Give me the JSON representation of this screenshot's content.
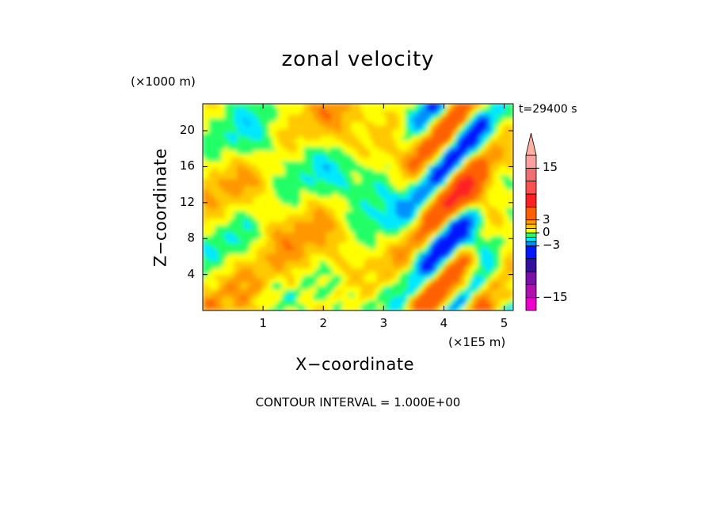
{
  "chart_data": {
    "type": "heatmap",
    "title": "zonal velocity",
    "xlabel": "X−coordinate",
    "ylabel": "Z−coordinate",
    "x_unit_label": "(×1E5 m)",
    "y_unit_label": "(×1000 m)",
    "time_label": "t=29400 s",
    "footer": "CONTOUR INTERVAL = 1.000E+00",
    "xlim": [
      0,
      5.15
    ],
    "ylim": [
      0,
      23
    ],
    "x_ticks": [
      "1",
      "2",
      "3",
      "4",
      "5"
    ],
    "x_tick_values": [
      1,
      2,
      3,
      4,
      5
    ],
    "y_ticks": [
      "4",
      "8",
      "12",
      "16",
      "20"
    ],
    "y_tick_values": [
      4,
      8,
      12,
      16,
      20
    ],
    "colorbar": {
      "ticks": [
        "15",
        "3",
        "0",
        "−3",
        "−15"
      ],
      "tick_values": [
        15,
        3,
        0,
        -3,
        -15
      ],
      "extend_max": true,
      "bands": [
        {
          "range": [
            -18,
            -15
          ],
          "color": "#ee00cc"
        },
        {
          "range": [
            -15,
            -12
          ],
          "color": "#b010b0"
        },
        {
          "range": [
            -12,
            -9
          ],
          "color": "#7a10a8"
        },
        {
          "range": [
            -9,
            -6
          ],
          "color": "#3410a0"
        },
        {
          "range": [
            -6,
            -3
          ],
          "color": "#0018ff"
        },
        {
          "range": [
            -3,
            -2
          ],
          "color": "#0090ff"
        },
        {
          "range": [
            -2,
            -1
          ],
          "color": "#00e8ff"
        },
        {
          "range": [
            -1,
            0
          ],
          "color": "#22ff66"
        },
        {
          "range": [
            0,
            1
          ],
          "color": "#ffff00"
        },
        {
          "range": [
            1,
            2
          ],
          "color": "#ffc800"
        },
        {
          "range": [
            2,
            3
          ],
          "color": "#ff9800"
        },
        {
          "range": [
            3,
            6
          ],
          "color": "#ff6000"
        },
        {
          "range": [
            6,
            9
          ],
          "color": "#ff2020"
        },
        {
          "range": [
            9,
            12
          ],
          "color": "#ff5050"
        },
        {
          "range": [
            12,
            15
          ],
          "color": "#f07070"
        },
        {
          "range": [
            15,
            18
          ],
          "color": "#ffa0a0"
        }
      ],
      "extend_color": "#ffb0a0"
    },
    "field_description": "turbulent zonal velocity field; mostly weak positive (yellow/green) at low levels, negative (blue/cyan) patches mid-levels, strong positive/negative alternating bands near x=3.5-4.8"
  }
}
